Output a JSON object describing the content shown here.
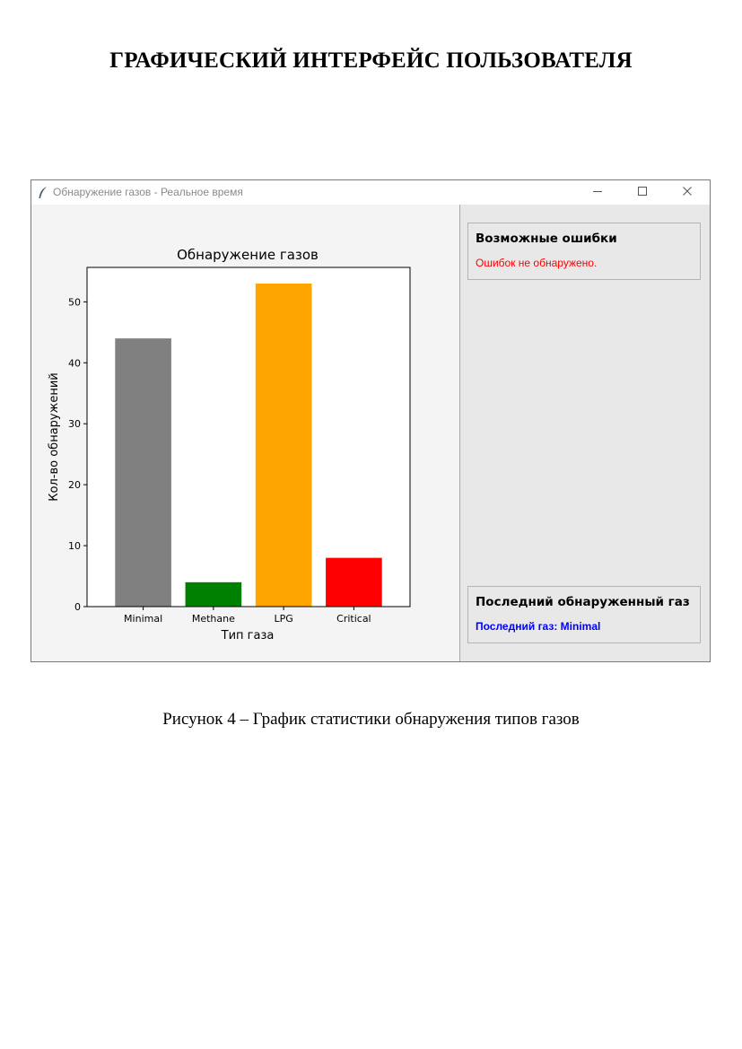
{
  "document": {
    "heading": "ГРАФИЧЕСКИЙ ИНТЕРФЕЙС ПОЛЬЗОВАТЕЛЯ",
    "caption": "Рисунок 4 – График статистики обнаружения типов газов"
  },
  "window": {
    "title": "Обнаружение газов - Реальное время",
    "icons": {
      "app": "feather-icon",
      "minimize": "minimize-icon",
      "maximize": "maximize-icon",
      "close": "close-icon"
    }
  },
  "errors_panel": {
    "title": "Возможные ошибки",
    "message": "Ошибок не обнаружено.",
    "message_color": "#ff0000"
  },
  "last_gas_panel": {
    "title": "Последний обнаруженный газ",
    "message": "Последний газ: Minimal",
    "message_color": "#0000ff"
  },
  "chart_data": {
    "type": "bar",
    "title": "Обнаружение газов",
    "xlabel": "Тип газа",
    "ylabel": "Кол-во обнаружений",
    "categories": [
      "Minimal",
      "Methane",
      "LPG",
      "Critical"
    ],
    "values": [
      44,
      4,
      53,
      8
    ],
    "colors": [
      "#808080",
      "#008000",
      "#ffa500",
      "#ff0000"
    ],
    "yticks": [
      0,
      10,
      20,
      30,
      40,
      50
    ],
    "ylim": [
      0,
      55.65
    ],
    "grid": false,
    "legend": "none"
  }
}
